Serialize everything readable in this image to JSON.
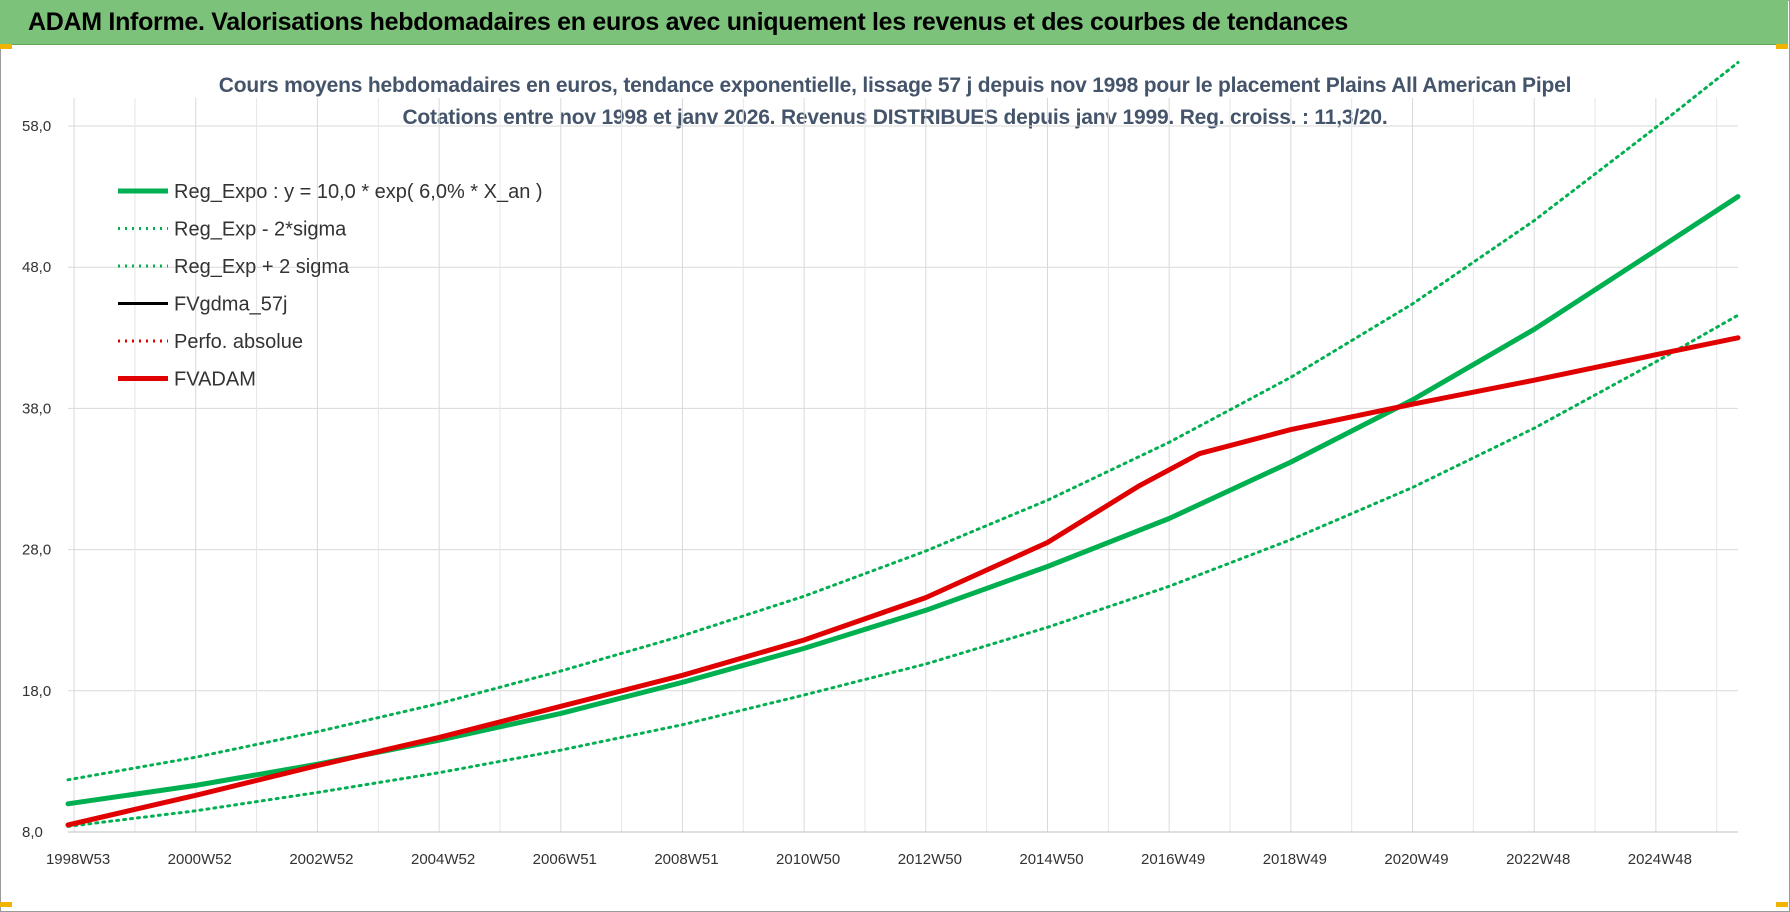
{
  "header": {
    "title": "ADAM Informe. Valorisations hebdomadaires en euros avec uniquement les revenus et des courbes de tendances"
  },
  "chart_data": {
    "type": "line",
    "title_line1": "Cours moyens hebdomadaires en euros, tendance exponentielle, lissage 57 j depuis nov 1998 pour le placement Plains All American Pipel",
    "title_line2": "Cotations entre nov 1998 et janv 2026. Revenus DISTRIBUES depuis janv 1999.  Reg. croiss. : 11,3/20.",
    "ylim": [
      8,
      60
    ],
    "yticks": [
      "8,0",
      "18,0",
      "28,0",
      "38,0",
      "48,0",
      "58,0"
    ],
    "ytick_values": [
      8,
      18,
      28,
      38,
      48,
      58
    ],
    "xticks": [
      "1998W53",
      "2000W52",
      "2002W52",
      "2004W52",
      "2006W51",
      "2008W51",
      "2010W50",
      "2012W50",
      "2014W50",
      "2016W49",
      "2018W49",
      "2020W49",
      "2022W48",
      "2024W48"
    ],
    "x_start": 1998.9,
    "x_end": 2026.35,
    "xtick_years": [
      1999,
      2001,
      2003,
      2005,
      2007,
      2009,
      2011,
      2013,
      2015,
      2017,
      2019,
      2021,
      2023,
      2025
    ],
    "grid": true,
    "legend_position": "top-left",
    "colors": {
      "green": "#00b050",
      "red": "#e00000",
      "black": "#000000"
    },
    "series": [
      {
        "name": "Reg_Expo : y = 10,0 * exp( 6,0% *  X_an )",
        "style": "solid-thick",
        "color": "#00b050",
        "x": [
          1998.9,
          2001,
          2003,
          2005,
          2007,
          2009,
          2011,
          2013,
          2015,
          2017,
          2019,
          2021,
          2023,
          2025,
          2026.35
        ],
        "values": [
          10.0,
          11.3,
          12.8,
          14.5,
          16.4,
          18.6,
          21.0,
          23.7,
          26.8,
          30.2,
          34.2,
          38.6,
          43.6,
          49.2,
          53.0
        ]
      },
      {
        "name": "Reg_Exp - 2*sigma",
        "style": "dotted",
        "color": "#00b050",
        "x": [
          1998.9,
          2001,
          2003,
          2005,
          2007,
          2009,
          2011,
          2013,
          2015,
          2017,
          2019,
          2021,
          2023,
          2025,
          2026.35
        ],
        "values": [
          8.4,
          9.5,
          10.8,
          12.2,
          13.8,
          15.6,
          17.7,
          19.9,
          22.5,
          25.4,
          28.7,
          32.4,
          36.6,
          41.3,
          44.6
        ]
      },
      {
        "name": "Reg_Exp + 2 sigma",
        "style": "dotted",
        "color": "#00b050",
        "x": [
          1998.9,
          2001,
          2003,
          2005,
          2007,
          2009,
          2011,
          2013,
          2015,
          2017,
          2019,
          2021,
          2023,
          2025,
          2026.35
        ],
        "values": [
          11.7,
          13.3,
          15.1,
          17.1,
          19.4,
          21.9,
          24.7,
          27.9,
          31.5,
          35.6,
          40.2,
          45.4,
          51.3,
          57.9,
          62.5
        ]
      },
      {
        "name": "FVgdma_57j",
        "style": "solid",
        "color": "#000000",
        "x": [],
        "values": []
      },
      {
        "name": "Perfo. absolue",
        "style": "dotted",
        "color": "#e00000",
        "x": [],
        "values": []
      },
      {
        "name": "FVADAM",
        "style": "solid-thick",
        "color": "#e00000",
        "x": [
          1998.9,
          2001,
          2003,
          2005,
          2007,
          2009,
          2011,
          2013,
          2015,
          2016.5,
          2017.5,
          2019,
          2021,
          2023,
          2025,
          2026.35
        ],
        "values": [
          8.5,
          10.6,
          12.7,
          14.7,
          16.9,
          19.1,
          21.6,
          24.6,
          28.5,
          32.5,
          34.8,
          36.5,
          38.3,
          40.0,
          41.8,
          43.0
        ]
      }
    ]
  }
}
